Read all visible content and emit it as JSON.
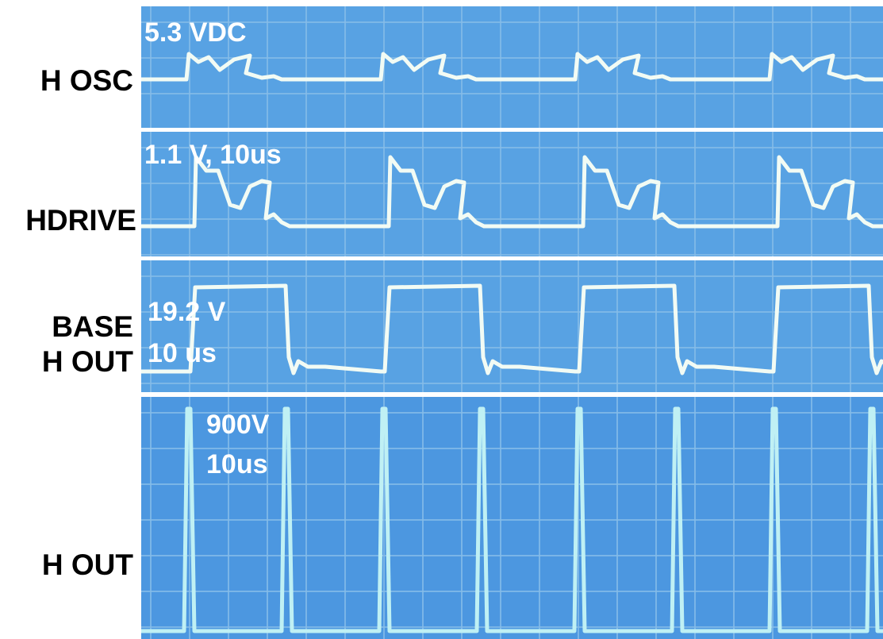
{
  "panels": [
    {
      "label": [
        "H OSC"
      ],
      "annotation": [
        "5.3 VDC"
      ]
    },
    {
      "label": [
        "HDRIVE"
      ],
      "annotation": [
        "1.1 V, 10us"
      ]
    },
    {
      "label": [
        "BASE",
        "H OUT"
      ],
      "annotation": [
        "19.2 V",
        "10 us"
      ]
    },
    {
      "label": [
        "H OUT"
      ],
      "annotation": [
        "900V",
        "10us"
      ]
    }
  ]
}
